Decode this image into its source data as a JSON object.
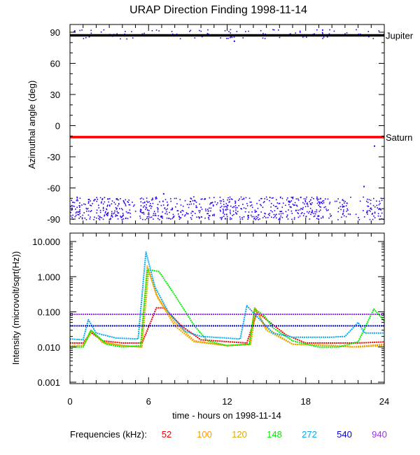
{
  "title": "URAP Direction Finding  1998-11-14",
  "chart_data": [
    {
      "type": "scatter",
      "title": "URAP Direction Finding  1998-11-14",
      "ylabel": "Azimuthal angle (deg)",
      "xlim": [
        0,
        24
      ],
      "ylim": [
        -95,
        95
      ],
      "yticks": [
        90,
        60,
        30,
        0,
        -30,
        -60,
        -90
      ],
      "reference_lines": [
        {
          "name": "Jupiter",
          "y": 87,
          "color": "#000000"
        },
        {
          "name": "Saturn",
          "y": -11,
          "color": "#ff0000"
        }
      ],
      "series": [
        {
          "color": "#2200ee",
          "description_bands": [
            {
              "x_range": [
                0,
                23.9
              ],
              "y_range": [
                -90,
                -68
              ]
            },
            {
              "x_range": [
                0,
                24
              ],
              "y_range": [
                84,
                93
              ]
            }
          ],
          "isolated_points": [
            [
              22.4,
              -58
            ],
            [
              23.3,
              -10
            ],
            [
              23.2,
              -19
            ],
            [
              12.5,
              82
            ],
            [
              7.1,
              -65
            ]
          ]
        }
      ]
    },
    {
      "type": "line",
      "ylabel": "Intensity (microvolt/sqrt(Hz))",
      "xlabel": "time - hours on 1998-11-14",
      "xlim": [
        0,
        24
      ],
      "ylim": [
        0.001,
        10
      ],
      "yscale": "log",
      "yticks": [
        "10.000",
        "1.000",
        "0.100",
        "0.010",
        "0.001"
      ],
      "xticks": [
        "0",
        "6",
        "12",
        "18",
        "24"
      ],
      "legend_title": "Frequencies (kHz):",
      "legend_placement": "bottom",
      "series": [
        {
          "name": "52",
          "color": "#ee0000",
          "points": [
            [
              0,
              0.013
            ],
            [
              1,
              0.013
            ],
            [
              1.6,
              0.026
            ],
            [
              2.5,
              0.015
            ],
            [
              4,
              0.013
            ],
            [
              5.5,
              0.013
            ],
            [
              6.6,
              0.13
            ],
            [
              7.2,
              0.13
            ],
            [
              8.5,
              0.04
            ],
            [
              10,
              0.016
            ],
            [
              13.5,
              0.013
            ],
            [
              14.3,
              0.1
            ],
            [
              15,
              0.06
            ],
            [
              16.5,
              0.022
            ],
            [
              18,
              0.013
            ],
            [
              20,
              0.013
            ],
            [
              22,
              0.013
            ],
            [
              24,
              0.014
            ]
          ]
        },
        {
          "name": "100",
          "color": "#ff9900",
          "points": [
            [
              0,
              0.011
            ],
            [
              1,
              0.011
            ],
            [
              1.6,
              0.03
            ],
            [
              2.5,
              0.014
            ],
            [
              4,
              0.011
            ],
            [
              5.4,
              0.01
            ],
            [
              5.9,
              2.0
            ],
            [
              6.6,
              0.3
            ],
            [
              8,
              0.05
            ],
            [
              9.5,
              0.015
            ],
            [
              12,
              0.011
            ],
            [
              13.7,
              0.012
            ],
            [
              14.1,
              0.13
            ],
            [
              15,
              0.035
            ],
            [
              17,
              0.012
            ],
            [
              20,
              0.011
            ],
            [
              21.5,
              0.01
            ],
            [
              24,
              0.012
            ]
          ]
        },
        {
          "name": "120",
          "color": "#ddaa00",
          "points": [
            [
              0,
              0.011
            ],
            [
              1,
              0.011
            ],
            [
              1.7,
              0.028
            ],
            [
              2.5,
              0.013
            ],
            [
              4,
              0.011
            ],
            [
              5.5,
              0.01
            ],
            [
              6,
              1.5
            ],
            [
              6.7,
              0.25
            ],
            [
              8,
              0.04
            ],
            [
              9.5,
              0.014
            ],
            [
              12,
              0.011
            ],
            [
              13.8,
              0.012
            ],
            [
              14.2,
              0.12
            ],
            [
              15,
              0.03
            ],
            [
              17,
              0.012
            ],
            [
              20,
              0.011
            ],
            [
              22,
              0.01
            ],
            [
              24,
              0.011
            ]
          ]
        },
        {
          "name": "148",
          "color": "#00ee00",
          "points": [
            [
              0,
              0.01
            ],
            [
              1,
              0.01
            ],
            [
              1.6,
              0.03
            ],
            [
              2.8,
              0.012
            ],
            [
              4,
              0.01
            ],
            [
              5.4,
              0.011
            ],
            [
              5.9,
              1.6
            ],
            [
              6.8,
              1.4
            ],
            [
              8,
              0.3
            ],
            [
              9.5,
              0.04
            ],
            [
              10.5,
              0.015
            ],
            [
              12,
              0.011
            ],
            [
              13.7,
              0.012
            ],
            [
              14.1,
              0.12
            ],
            [
              14.8,
              0.08
            ],
            [
              15.5,
              0.035
            ],
            [
              17,
              0.015
            ],
            [
              19,
              0.01
            ],
            [
              20.5,
              0.01
            ],
            [
              22,
              0.014
            ],
            [
              23.2,
              0.12
            ],
            [
              24,
              0.055
            ]
          ]
        },
        {
          "name": "272",
          "color": "#00aaee",
          "points": [
            [
              0,
              0.017
            ],
            [
              1,
              0.016
            ],
            [
              1.4,
              0.06
            ],
            [
              2,
              0.025
            ],
            [
              3.5,
              0.018
            ],
            [
              5.2,
              0.017
            ],
            [
              5.8,
              5.0
            ],
            [
              6.5,
              0.5
            ],
            [
              7.5,
              0.1
            ],
            [
              8.8,
              0.028
            ],
            [
              10,
              0.02
            ],
            [
              13,
              0.017
            ],
            [
              13.5,
              0.15
            ],
            [
              14.5,
              0.06
            ],
            [
              15.5,
              0.025
            ],
            [
              17,
              0.019
            ],
            [
              20,
              0.019
            ],
            [
              21,
              0.02
            ],
            [
              22,
              0.05
            ],
            [
              22.5,
              0.025
            ],
            [
              24,
              0.025
            ]
          ]
        },
        {
          "name": "540",
          "color": "#0000dd",
          "points": [
            [
              0,
              0.04
            ],
            [
              2,
              0.04
            ],
            [
              4,
              0.04
            ],
            [
              6,
              0.04
            ],
            [
              8,
              0.04
            ],
            [
              10,
              0.04
            ],
            [
              12,
              0.04
            ],
            [
              14,
              0.04
            ],
            [
              16,
              0.04
            ],
            [
              18,
              0.04
            ],
            [
              20,
              0.04
            ],
            [
              22,
              0.04
            ],
            [
              24,
              0.04
            ]
          ]
        },
        {
          "name": "940",
          "color": "#9933ee",
          "points": [
            [
              0,
              0.085
            ],
            [
              2,
              0.085
            ],
            [
              4,
              0.085
            ],
            [
              6,
              0.085
            ],
            [
              8,
              0.085
            ],
            [
              10,
              0.085
            ],
            [
              12,
              0.085
            ],
            [
              14,
              0.085
            ],
            [
              16,
              0.085
            ],
            [
              18,
              0.085
            ],
            [
              20,
              0.085
            ],
            [
              22,
              0.085
            ],
            [
              24,
              0.085
            ]
          ]
        }
      ]
    }
  ]
}
